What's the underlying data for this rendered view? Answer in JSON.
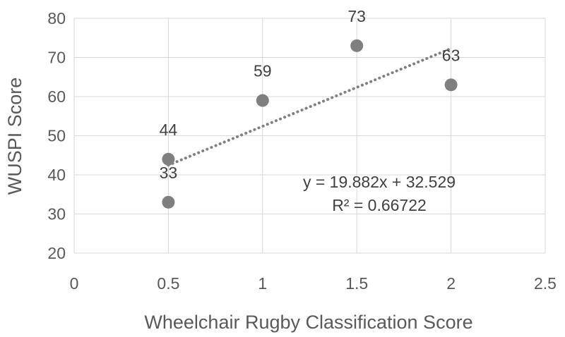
{
  "chart_data": {
    "type": "scatter",
    "title": "",
    "xlabel": "Wheelchair Rugby Classification Score",
    "ylabel": "WUSPI Score",
    "xlim": [
      0,
      2.5
    ],
    "ylim": [
      20,
      80
    ],
    "x_ticks": [
      "0",
      "0.5",
      "1",
      "1.5",
      "2",
      "2.5"
    ],
    "y_ticks": [
      "20",
      "30",
      "40",
      "50",
      "60",
      "70",
      "80"
    ],
    "grid": true,
    "legend": "none",
    "series": [
      {
        "points": [
          {
            "x": 0.5,
            "y": 44,
            "label": "44"
          },
          {
            "x": 0.5,
            "y": 33,
            "label": "33"
          },
          {
            "x": 1.0,
            "y": 59,
            "label": "59"
          },
          {
            "x": 1.5,
            "y": 73,
            "label": "73"
          },
          {
            "x": 2.0,
            "y": 63,
            "label": "63"
          }
        ]
      }
    ],
    "trendline": {
      "type": "linear",
      "slope": 19.882,
      "intercept": 32.529,
      "equation": "y = 19.882x + 32.529",
      "r_squared": "R² = 0.66722",
      "x_range": [
        0.5,
        2.0
      ]
    },
    "colors": {
      "marker": "#7f7f7f",
      "trendline": "#7f7f7f",
      "grid": "#d9d9d9",
      "text": "#595959"
    }
  }
}
